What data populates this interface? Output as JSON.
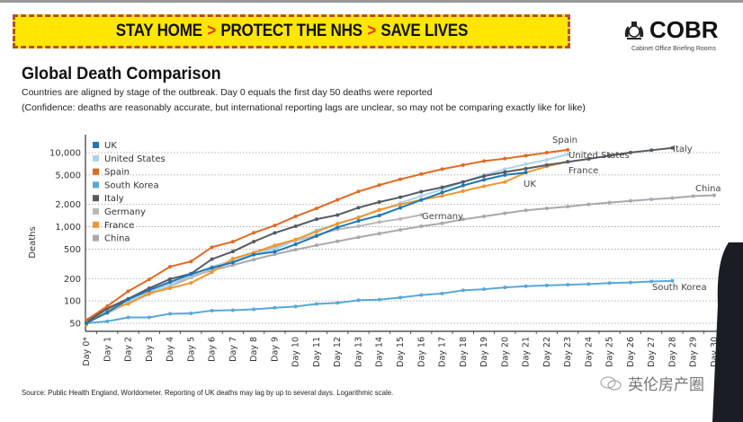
{
  "banner": {
    "parts": [
      "STAY HOME",
      "PROTECT THE NHS",
      "SAVE LIVES"
    ],
    "separator": ">"
  },
  "logo": {
    "name": "COBR",
    "subtitle": "Cabinet Office Briefing Rooms",
    "icon": "royal-crest-icon"
  },
  "header": {
    "title": "Global Death Comparison",
    "subtitle1": "Countries are aligned by stage of the outbreak. Day 0 equals the first day 50 deaths were reported",
    "subtitle2": "(Confidence: deaths are reasonably accurate, but international reporting lags are unclear, so may not be comparing exactly like for like)"
  },
  "footer": {
    "source": "Source: Public Health England, Worldometer. Reporting of UK deaths may lag by up to several days. Logarithmic scale."
  },
  "watermark": {
    "text": "英伦房产圈",
    "icon": "wechat-icon"
  },
  "chart_data": {
    "type": "line",
    "title": "Global Death Comparison",
    "xlabel": "",
    "ylabel": "Deaths",
    "yscale": "log",
    "ylim": [
      40,
      13000
    ],
    "yticks": [
      50,
      100,
      200,
      500,
      1000,
      2000,
      5000,
      10000
    ],
    "ytick_labels": [
      "50",
      "100",
      "200",
      "500",
      "1,000",
      "2,000",
      "5,000",
      "10,000"
    ],
    "grid": "horizontal-dotted",
    "legend_position": "top-left",
    "categories": [
      "Day 0*",
      "Day 1",
      "Day 2",
      "Day 3",
      "Day 4",
      "Day 5",
      "Day 6",
      "Day 7",
      "Day 8",
      "Day 9",
      "Day 10",
      "Day 11",
      "Day 12",
      "Day 13",
      "Day 14",
      "Day 15",
      "Day 16",
      "Day 17",
      "Day 18",
      "Day 19",
      "Day 20",
      "Day 21",
      "Day 22",
      "Day 23",
      "Day 24",
      "Day 25",
      "Day 26",
      "Day 27",
      "Day 28",
      "Day 29",
      "Day 30"
    ],
    "series": [
      {
        "name": "UK",
        "color": "#1f77b4",
        "label": "UK",
        "values": [
          50,
          70,
          105,
          140,
          180,
          230,
          280,
          330,
          420,
          460,
          580,
          750,
          980,
          1200,
          1420,
          1800,
          2300,
          2900,
          3600,
          4300,
          5000,
          5400
        ]
      },
      {
        "name": "United States",
        "color": "#a9d4ec",
        "label": "United States",
        "values": [
          55,
          75,
          100,
          130,
          170,
          220,
          290,
          350,
          430,
          500,
          650,
          900,
          1100,
          1350,
          1650,
          2100,
          2600,
          3200,
          4000,
          5000,
          6000,
          7000,
          8000,
          9500
        ]
      },
      {
        "name": "Spain",
        "color": "#e06a23",
        "label": "Spain",
        "values": [
          55,
          85,
          135,
          195,
          290,
          340,
          530,
          630,
          830,
          1040,
          1380,
          1770,
          2310,
          2990,
          3650,
          4370,
          5140,
          5990,
          6800,
          7700,
          8300,
          9100,
          10000,
          10900
        ]
      },
      {
        "name": "South Korea",
        "color": "#5aa8d6",
        "label": "South Korea",
        "values": [
          50,
          53,
          60,
          60,
          67,
          68,
          74,
          75,
          77,
          81,
          84,
          91,
          94,
          102,
          104,
          111,
          120,
          126,
          139,
          144,
          152,
          158,
          162,
          165,
          169,
          174,
          177,
          183,
          186
        ]
      },
      {
        "name": "Italy",
        "color": "#555a61",
        "label": "Italy",
        "values": [
          52,
          79,
          107,
          148,
          197,
          233,
          366,
          463,
          631,
          827,
          1016,
          1266,
          1441,
          1809,
          2158,
          2503,
          2978,
          3405,
          4032,
          4825,
          5476,
          6077,
          6820,
          7503,
          8215,
          9134,
          10023,
          10779,
          11591
        ]
      },
      {
        "name": "Germany",
        "color": "#b8b8b8",
        "label": "Germany",
        "values": [
          52,
          68,
          94,
          123,
          157,
          206,
          267,
          342,
          433,
          533,
          645,
          775,
          920,
          1017,
          1158,
          1275,
          1450
        ]
      },
      {
        "name": "France",
        "color": "#f0962f",
        "label": "France",
        "values": [
          48,
          79,
          91,
          127,
          148,
          175,
          244,
          372,
          450,
          562,
          674,
          860,
          1100,
          1331,
          1696,
          1995,
          2314,
          2606,
          3024,
          3523,
          4032,
          5387,
          6507,
          7560
        ]
      },
      {
        "name": "China",
        "color": "#a8a8ae",
        "label": "China",
        "values": [
          56,
          80,
          106,
          132,
          170,
          213,
          259,
          304,
          361,
          425,
          490,
          563,
          636,
          722,
          811,
          908,
          1016,
          1113,
          1259,
          1380,
          1523,
          1665,
          1770,
          1868,
          2004,
          2118,
          2236,
          2345,
          2442,
          2592,
          2663
        ]
      }
    ],
    "annotations": [
      "Spain",
      "United States",
      "France",
      "UK",
      "Italy",
      "China",
      "Germany",
      "South Korea"
    ]
  }
}
